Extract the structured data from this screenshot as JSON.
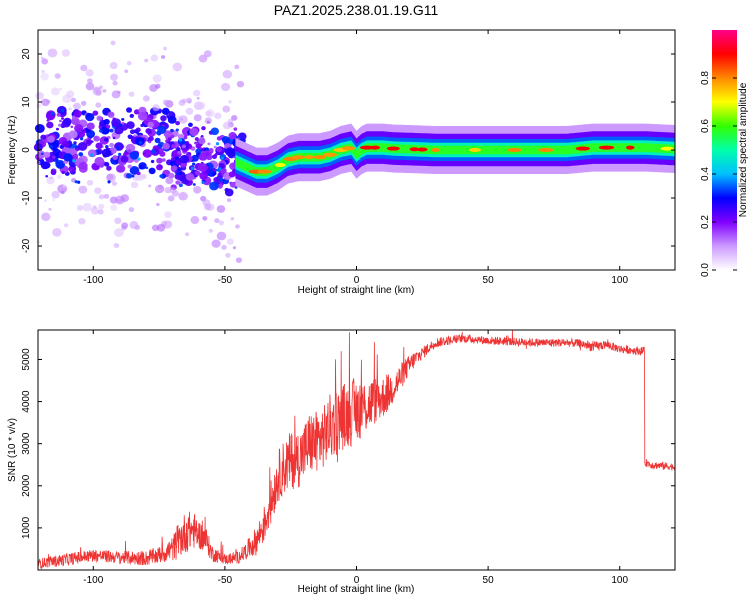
{
  "figure_title": "PAZ1.2025.238.01.19.G11",
  "chart_data": [
    {
      "type": "heatmap",
      "title": "PAZ1.2025.238.01.19.G11",
      "xlabel": "Height of straight line (km)",
      "ylabel": "Frequency (Hz)",
      "xlim": [
        -121,
        121
      ],
      "ylim": [
        -25,
        25
      ],
      "xticks": [
        -100,
        -50,
        0,
        50,
        100
      ],
      "yticks": [
        -20,
        -10,
        0,
        10,
        20
      ],
      "grid": false,
      "colorbar": {
        "label": "Normalized spectral amplitude",
        "range": [
          0,
          1
        ],
        "ticks": [
          "0.0",
          "0.2",
          "0.4",
          "0.6",
          "0.8"
        ],
        "stops": [
          "#ffffff",
          "#cc99ff",
          "#8000ff",
          "#0000ff",
          "#00c0ff",
          "#00ffaa",
          "#33ff00",
          "#ffff00",
          "#ff8800",
          "#ff0000",
          "#ff0088"
        ]
      },
      "ridge": {
        "description_points_x": [
          -46,
          -42,
          -38,
          -34,
          -30,
          -26,
          -22,
          -18,
          -14,
          -10,
          -6,
          -2,
          0,
          2,
          4,
          6,
          10,
          14,
          20,
          30,
          40,
          60,
          80,
          90,
          100,
          110,
          121
        ],
        "description_points_y": [
          -2.5,
          -3.5,
          -4.5,
          -4.5,
          -3.5,
          -2.0,
          -1.5,
          -1.5,
          -1.5,
          -1.0,
          0.0,
          0.5,
          -1.0,
          0.0,
          0.5,
          0.5,
          0.5,
          0.3,
          0.2,
          0.0,
          0.0,
          0.0,
          0.0,
          0.5,
          0.5,
          0.5,
          0.2
        ]
      }
    },
    {
      "type": "line",
      "title": "",
      "xlabel": "Height of straight line (km)",
      "ylabel": "SNR (10 * v/v)",
      "xlim": [
        -121,
        121
      ],
      "ylim": [
        0,
        5700
      ],
      "xticks": [
        -100,
        -50,
        0,
        50,
        100
      ],
      "yticks": [
        1000,
        2000,
        3000,
        4000,
        5000
      ],
      "grid": false,
      "series": [
        {
          "name": "",
          "color": "#ee3333",
          "x": [
            -121,
            -110,
            -100,
            -90,
            -80,
            -75,
            -70,
            -68,
            -65,
            -62,
            -60,
            -57,
            -55,
            -50,
            -45,
            -42,
            -38,
            -35,
            -32,
            -30,
            -28,
            -25,
            -22,
            -20,
            -18,
            -15,
            -12,
            -10,
            -8,
            -5,
            -3,
            0,
            2,
            4,
            6,
            8,
            10,
            12,
            14,
            16,
            18,
            20,
            22,
            25,
            28,
            30,
            35,
            40,
            45,
            50,
            60,
            70,
            80,
            85,
            90,
            95,
            100,
            105,
            108,
            109,
            110,
            112,
            115,
            121
          ],
          "y": [
            150,
            250,
            350,
            300,
            280,
            350,
            500,
            650,
            900,
            950,
            850,
            700,
            400,
            250,
            300,
            450,
            700,
            1100,
            1700,
            2200,
            2400,
            2600,
            2650,
            2800,
            3000,
            3050,
            3200,
            3400,
            3500,
            3650,
            3700,
            3800,
            3850,
            3900,
            4000,
            4050,
            4100,
            4200,
            4350,
            4500,
            4700,
            4850,
            5000,
            5150,
            5300,
            5400,
            5450,
            5500,
            5480,
            5450,
            5420,
            5400,
            5400,
            5380,
            5300,
            5350,
            5250,
            5220,
            5200,
            5200,
            2550,
            2500,
            2480,
            2450
          ],
          "noise": [
            120,
            150,
            150,
            150,
            180,
            200,
            300,
            400,
            500,
            450,
            350,
            300,
            200,
            120,
            150,
            200,
            350,
            450,
            550,
            600,
            650,
            700,
            700,
            700,
            750,
            750,
            750,
            800,
            800,
            800,
            800,
            800,
            700,
            650,
            600,
            550,
            500,
            450,
            400,
            350,
            300,
            250,
            200,
            150,
            130,
            120,
            110,
            100,
            100,
            100,
            100,
            100,
            100,
            100,
            120,
            100,
            100,
            100,
            100,
            100,
            90,
            90,
            90,
            90
          ]
        }
      ]
    }
  ]
}
